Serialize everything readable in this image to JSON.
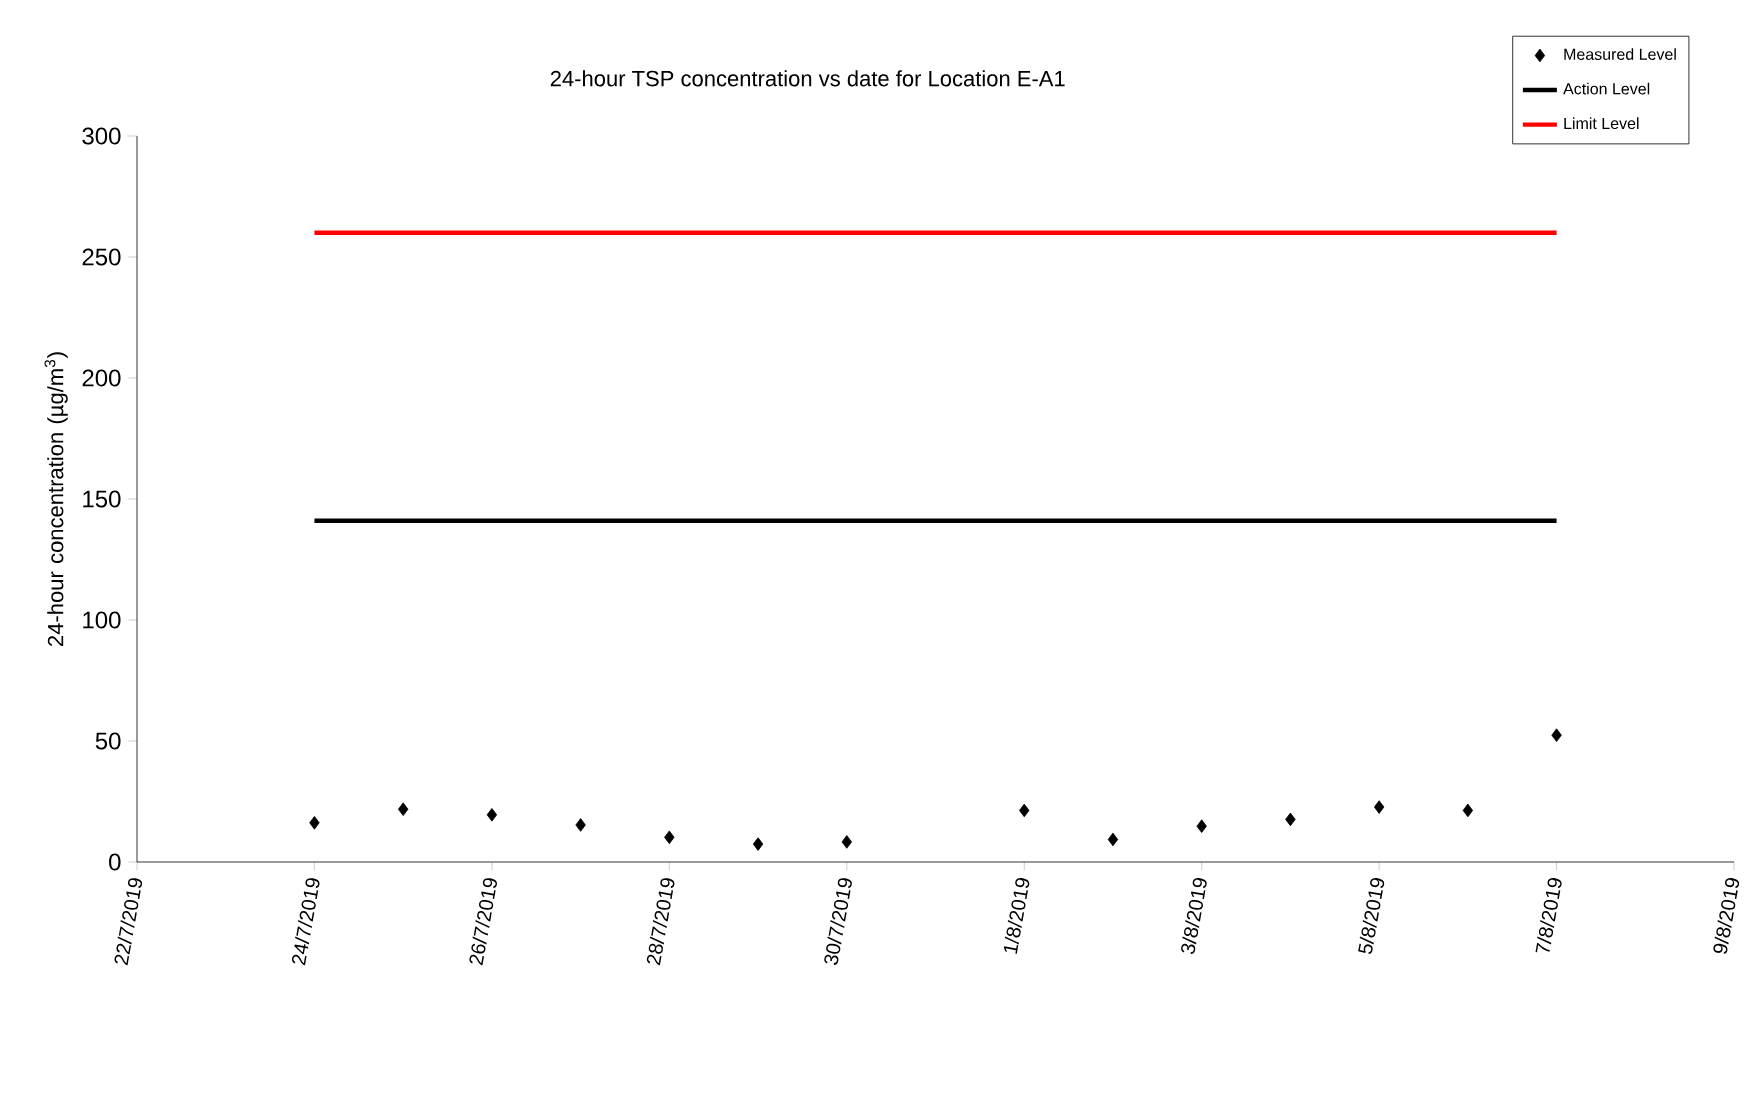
{
  "chart_data": {
    "type": "scatter",
    "title": "24-hour TSP concentration vs date for Location E-A1",
    "ylabel": "24-hour concentration (µg/m$^{3}$)",
    "x": [
      "2019-07-24",
      "2019-07-25",
      "2019-07-26",
      "2019-07-27",
      "2019-07-28",
      "2019-07-29",
      "2019-07-30",
      "2019-08-01",
      "2019-08-02",
      "2019-08-03",
      "2019-08-04",
      "2019-08-05",
      "2019-08-06",
      "2019-08-07"
    ],
    "series": [
      {
        "name": "Measured Level",
        "marker": "diamond",
        "color": "#000000",
        "values": [
          16.2,
          21.8,
          19.5,
          15.3,
          10.2,
          7.4,
          8.3,
          21.3,
          9.3,
          14.8,
          17.6,
          22.7,
          21.3,
          52.4
        ]
      },
      {
        "name": "Action Level",
        "type": "line",
        "marker": "none",
        "color": "#000000",
        "x": [
          "2019-07-24",
          "2019-08-07"
        ],
        "values": [
          141,
          141
        ]
      },
      {
        "name": "Limit Level",
        "type": "line",
        "marker": "none",
        "color": "#ff0000",
        "x": [
          "2019-07-24",
          "2019-08-07"
        ],
        "values": [
          260,
          260
        ]
      }
    ],
    "xlim": [
      "2019-07-22",
      "2019-08-09"
    ],
    "xticks": [
      {
        "value": "2019-07-22",
        "label": "22/7/2019"
      },
      {
        "value": "2019-07-24",
        "label": "24/7/2019"
      },
      {
        "value": "2019-07-26",
        "label": "26/7/2019"
      },
      {
        "value": "2019-07-28",
        "label": "28/7/2019"
      },
      {
        "value": "2019-07-30",
        "label": "30/7/2019"
      },
      {
        "value": "2019-08-01",
        "label": "1/8/2019"
      },
      {
        "value": "2019-08-03",
        "label": "3/8/2019"
      },
      {
        "value": "2019-08-05",
        "label": "5/8/2019"
      },
      {
        "value": "2019-08-07",
        "label": "7/8/2019"
      },
      {
        "value": "2019-08-09",
        "label": "9/8/2019"
      }
    ],
    "ylim": [
      0,
      300
    ],
    "yticks": [
      0,
      50,
      100,
      150,
      200,
      250,
      300
    ],
    "grid": false,
    "legend": "top right"
  }
}
